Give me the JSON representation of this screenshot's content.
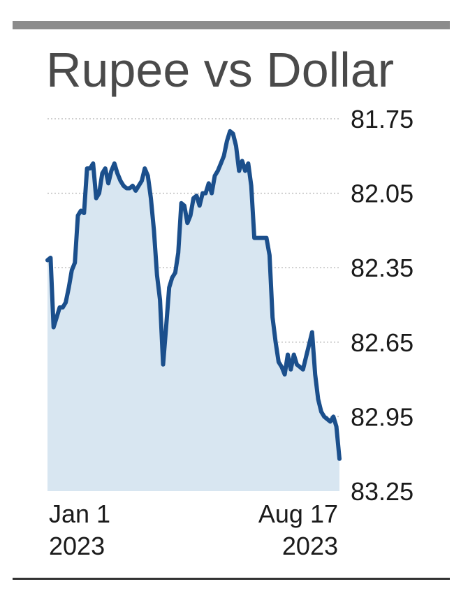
{
  "chart_data": {
    "type": "area",
    "title": "Rupee vs Dollar",
    "xlabel": "",
    "ylabel": "",
    "y_inverted": true,
    "ylim": [
      81.75,
      83.25
    ],
    "yticks": [
      "81.75",
      "82.05",
      "82.35",
      "82.65",
      "82.95",
      "83.25"
    ],
    "x_start": {
      "date": "Jan 1",
      "year": "2023"
    },
    "x_end": {
      "date": "Aug 17",
      "year": "2023"
    },
    "grid": true,
    "colors": {
      "line": "#1b4f8c",
      "fill": "#d8e6f1",
      "grid": "#bfbfbf"
    },
    "series": [
      {
        "values": [
          82.32,
          82.31,
          82.59,
          82.55,
          82.51,
          82.51,
          82.49,
          82.43,
          82.36,
          82.33,
          82.14,
          82.12,
          82.13,
          81.95,
          81.95,
          81.93,
          82.07,
          82.05,
          81.97,
          81.95,
          82.01,
          81.96,
          81.93,
          81.97,
          82.0,
          82.02,
          82.03,
          82.03,
          82.02,
          82.04,
          82.02,
          82.0,
          81.95,
          81.98,
          82.07,
          82.2,
          82.38,
          82.48,
          82.74,
          82.59,
          82.43,
          82.39,
          82.37,
          82.29,
          82.09,
          82.1,
          82.17,
          82.14,
          82.07,
          82.06,
          82.1,
          82.05,
          82.05,
          82.01,
          82.05,
          81.98,
          81.96,
          81.93,
          81.9,
          81.84,
          81.8,
          81.81,
          81.86,
          81.96,
          81.92,
          81.96,
          81.93,
          82.02,
          82.23,
          82.23,
          82.23,
          82.23,
          82.23,
          82.3,
          82.55,
          82.65,
          82.73,
          82.75,
          82.78,
          82.7,
          82.76,
          82.7,
          82.74,
          82.75,
          82.76,
          82.71,
          82.66,
          82.61,
          82.78,
          82.88,
          82.93,
          82.95,
          82.96,
          82.97,
          82.95,
          82.99,
          83.12
        ]
      }
    ]
  }
}
